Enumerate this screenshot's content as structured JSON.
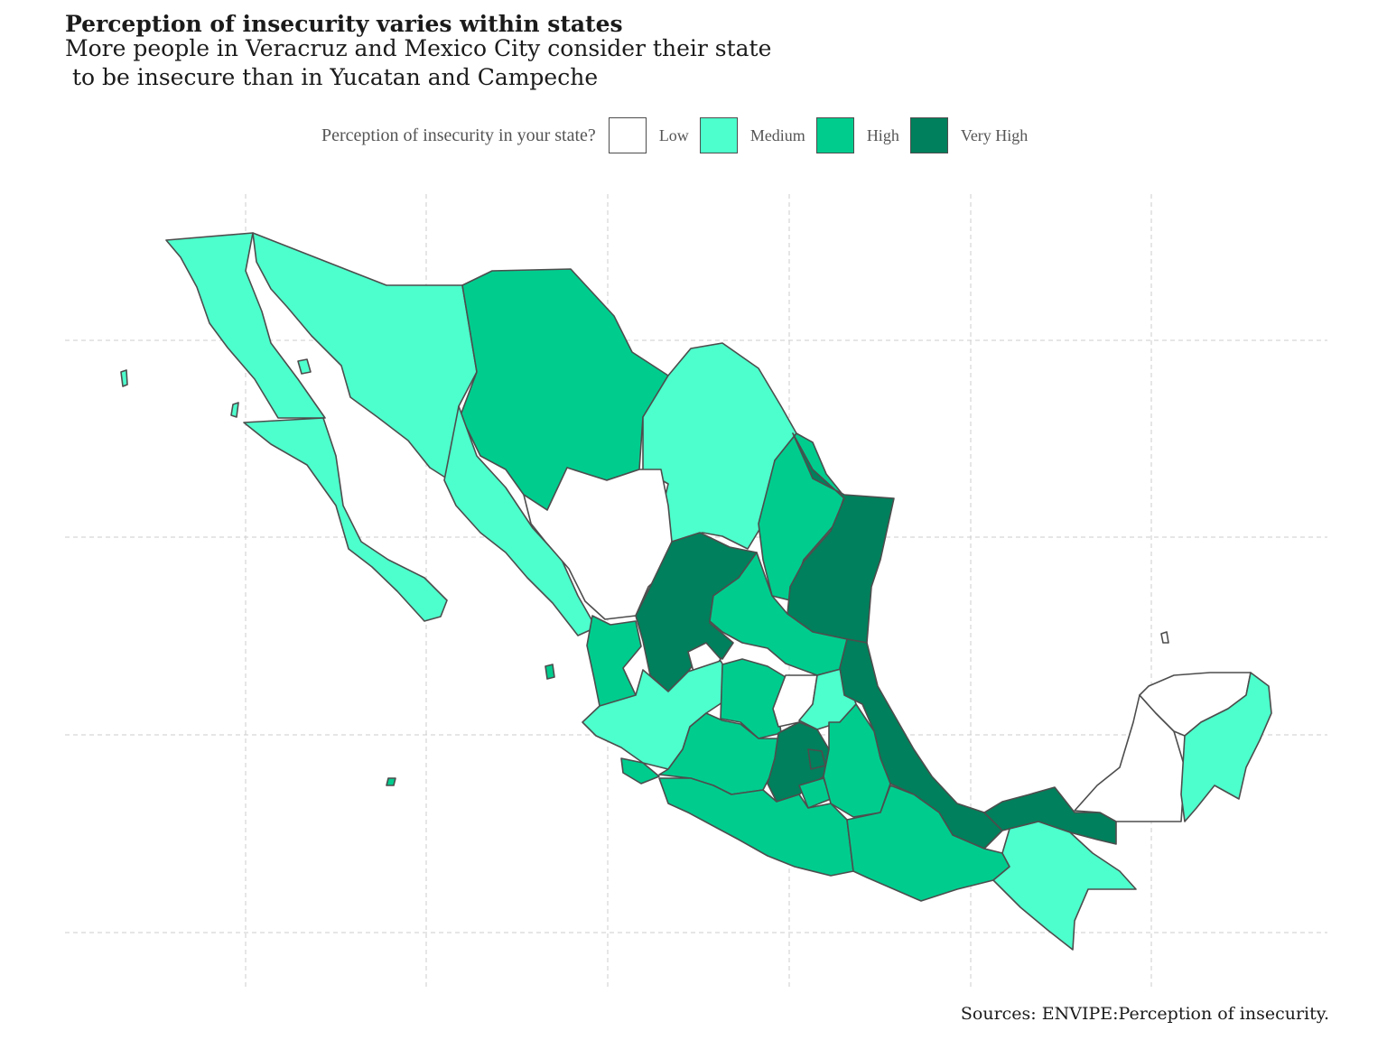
{
  "title": "Perception of insecurity varies within states",
  "subtitle": "More people in Veracruz and Mexico City consider their state\n to be insecure than in Yucatan and Campeche",
  "legend": {
    "title": "Perception of insecurity in your state?",
    "items": [
      {
        "label": "Low",
        "color": "#ffffff"
      },
      {
        "label": "Medium",
        "color": "#4dffcc"
      },
      {
        "label": "High",
        "color": "#00cc8e"
      },
      {
        "label": "Very High",
        "color": "#00805c"
      }
    ]
  },
  "caption": "Sources: ENVIPE:Perception of insecurity.",
  "map": {
    "grid": true,
    "border_color": "#4d4d4d",
    "states": [
      {
        "name": "Baja California",
        "level": "Medium"
      },
      {
        "name": "Baja California Sur",
        "level": "Medium"
      },
      {
        "name": "Sonora",
        "level": "Medium"
      },
      {
        "name": "Chihuahua",
        "level": "High"
      },
      {
        "name": "Coahuila",
        "level": "Medium"
      },
      {
        "name": "Nuevo Leon",
        "level": "High"
      },
      {
        "name": "Tamaulipas",
        "level": "Very High"
      },
      {
        "name": "Sinaloa",
        "level": "Medium"
      },
      {
        "name": "Durango",
        "level": "Low"
      },
      {
        "name": "Zacatecas",
        "level": "Very High"
      },
      {
        "name": "San Luis Potosi",
        "level": "High"
      },
      {
        "name": "Nayarit",
        "level": "High"
      },
      {
        "name": "Aguascalientes",
        "level": "Low"
      },
      {
        "name": "Jalisco",
        "level": "Medium"
      },
      {
        "name": "Guanajuato",
        "level": "High"
      },
      {
        "name": "Queretaro",
        "level": "Low"
      },
      {
        "name": "Hidalgo",
        "level": "Medium"
      },
      {
        "name": "Veracruz",
        "level": "Very High"
      },
      {
        "name": "Colima",
        "level": "High"
      },
      {
        "name": "Michoacan",
        "level": "High"
      },
      {
        "name": "Mexico",
        "level": "Very High"
      },
      {
        "name": "Mexico City",
        "level": "Very High"
      },
      {
        "name": "Tlaxcala",
        "level": "Medium"
      },
      {
        "name": "Morelos",
        "level": "High"
      },
      {
        "name": "Puebla",
        "level": "High"
      },
      {
        "name": "Guerrero",
        "level": "High"
      },
      {
        "name": "Oaxaca",
        "level": "High"
      },
      {
        "name": "Tabasco",
        "level": "Very High"
      },
      {
        "name": "Chiapas",
        "level": "Medium"
      },
      {
        "name": "Campeche",
        "level": "Low"
      },
      {
        "name": "Yucatan",
        "level": "Low"
      },
      {
        "name": "Quintana Roo",
        "level": "Medium"
      }
    ]
  }
}
